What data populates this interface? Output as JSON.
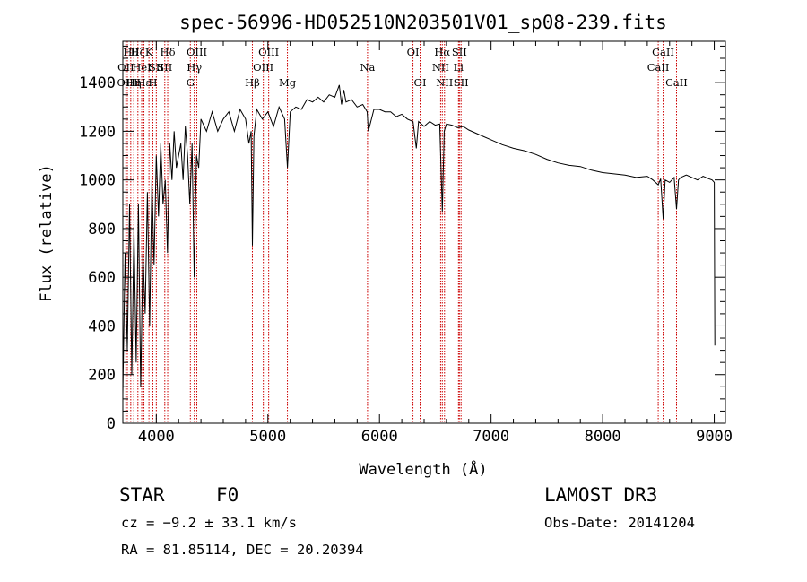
{
  "chart_data": {
    "type": "line",
    "title": "spec-56996-HD052510N203501V01_sp08-239.fits",
    "xlabel": "Wavelength (Å)",
    "ylabel": "Flux (relative)",
    "xlim": [
      3700,
      9100
    ],
    "ylim": [
      0,
      1570
    ],
    "xticks": [
      4000,
      5000,
      6000,
      7000,
      8000,
      9000
    ],
    "yticks": [
      0,
      200,
      400,
      600,
      800,
      1000,
      1200,
      1400
    ],
    "xtick_labels": [
      "4000",
      "5000",
      "6000",
      "7000",
      "8000",
      "9000"
    ],
    "ytick_labels": [
      "0",
      "200",
      "400",
      "600",
      "800",
      "1000",
      "1200",
      "1400"
    ],
    "series": [
      {
        "name": "spectrum",
        "color": "#000000",
        "x": [
          3700,
          3720,
          3740,
          3760,
          3780,
          3800,
          3820,
          3840,
          3860,
          3880,
          3900,
          3920,
          3940,
          3960,
          3980,
          4000,
          4020,
          4040,
          4060,
          4080,
          4100,
          4120,
          4140,
          4160,
          4180,
          4200,
          4220,
          4240,
          4260,
          4280,
          4300,
          4320,
          4340,
          4360,
          4380,
          4400,
          4450,
          4500,
          4550,
          4600,
          4650,
          4700,
          4750,
          4800,
          4830,
          4850,
          4861,
          4875,
          4900,
          4950,
          5000,
          5050,
          5100,
          5150,
          5175,
          5200,
          5250,
          5300,
          5350,
          5400,
          5450,
          5500,
          5550,
          5600,
          5640,
          5660,
          5680,
          5700,
          5750,
          5800,
          5850,
          5890,
          5900,
          5950,
          6000,
          6050,
          6100,
          6150,
          6200,
          6250,
          6300,
          6330,
          6350,
          6400,
          6450,
          6500,
          6540,
          6563,
          6580,
          6600,
          6650,
          6700,
          6750,
          6800,
          6900,
          7000,
          7100,
          7200,
          7300,
          7400,
          7500,
          7600,
          7700,
          7800,
          7900,
          8000,
          8100,
          8200,
          8300,
          8400,
          8450,
          8498,
          8520,
          8542,
          8560,
          8600,
          8640,
          8662,
          8680,
          8700,
          8750,
          8800,
          8850,
          8900,
          8950,
          8980,
          9000,
          9005
        ],
        "y": [
          120,
          700,
          300,
          900,
          200,
          800,
          250,
          900,
          150,
          700,
          450,
          950,
          400,
          1000,
          650,
          1100,
          850,
          1150,
          900,
          1000,
          700,
          1150,
          1000,
          1200,
          1050,
          1100,
          1150,
          1000,
          1220,
          1100,
          900,
          1150,
          600,
          1100,
          1050,
          1250,
          1200,
          1280,
          1200,
          1250,
          1280,
          1200,
          1290,
          1250,
          1150,
          1200,
          730,
          1180,
          1290,
          1250,
          1280,
          1220,
          1300,
          1250,
          1050,
          1280,
          1300,
          1290,
          1330,
          1320,
          1340,
          1320,
          1350,
          1340,
          1390,
          1310,
          1370,
          1320,
          1330,
          1300,
          1310,
          1280,
          1200,
          1290,
          1290,
          1280,
          1280,
          1260,
          1270,
          1250,
          1240,
          1130,
          1240,
          1220,
          1240,
          1225,
          1230,
          870,
          1200,
          1230,
          1225,
          1215,
          1220,
          1205,
          1185,
          1165,
          1145,
          1130,
          1120,
          1105,
          1085,
          1070,
          1060,
          1055,
          1040,
          1030,
          1025,
          1020,
          1010,
          1015,
          1000,
          980,
          1005,
          840,
          1000,
          990,
          1010,
          880,
          1000,
          1010,
          1020,
          1010,
          1000,
          1015,
          1005,
          1000,
          990,
          320
        ]
      }
    ],
    "line_markers": [
      {
        "label": "OII",
        "x": 3727,
        "row": 2
      },
      {
        "label": "OIII",
        "x": 3740,
        "row": 3
      },
      {
        "label": "Hθ",
        "x": 3771,
        "row": 1
      },
      {
        "label": "Hη",
        "x": 3798,
        "row": 3
      },
      {
        "label": "Hζ",
        "x": 3835,
        "row": 1
      },
      {
        "label": "HeI",
        "x": 3869,
        "row": 2
      },
      {
        "label": "Hε",
        "x": 3889,
        "row": 3
      },
      {
        "label": "K",
        "x": 3934,
        "row": 1
      },
      {
        "label": "H",
        "x": 3969,
        "row": 3
      },
      {
        "label": "SII",
        "x": 4000,
        "row": 2
      },
      {
        "label": "Hδ",
        "x": 4102,
        "row": 1
      },
      {
        "label": "SII",
        "x": 4076,
        "row": 2
      },
      {
        "label": "OIII",
        "x": 4363,
        "row": 1
      },
      {
        "label": "Hγ",
        "x": 4340,
        "row": 2
      },
      {
        "label": "G",
        "x": 4305,
        "row": 3
      },
      {
        "label": "Hβ",
        "x": 4861,
        "row": 3
      },
      {
        "label": "OIII",
        "x": 5007,
        "row": 1
      },
      {
        "label": "OIII",
        "x": 4959,
        "row": 2
      },
      {
        "label": "Mg",
        "x": 5175,
        "row": 3
      },
      {
        "label": "Na",
        "x": 5893,
        "row": 2
      },
      {
        "label": "OI",
        "x": 6300,
        "row": 1
      },
      {
        "label": "OI",
        "x": 6364,
        "row": 3
      },
      {
        "label": "Hα",
        "x": 6563,
        "row": 1
      },
      {
        "label": "NII",
        "x": 6548,
        "row": 2
      },
      {
        "label": "NII",
        "x": 6583,
        "row": 3
      },
      {
        "label": "SII",
        "x": 6716,
        "row": 1
      },
      {
        "label": "Li",
        "x": 6708,
        "row": 2
      },
      {
        "label": "SII",
        "x": 6731,
        "row": 3
      },
      {
        "label": "CaII",
        "x": 8542,
        "row": 1
      },
      {
        "label": "CaII",
        "x": 8498,
        "row": 2
      },
      {
        "label": "CaII",
        "x": 8662,
        "row": 3
      }
    ],
    "marker_color": "#cc0000"
  },
  "info": {
    "class": "STAR",
    "subclass": "F0",
    "survey": "LAMOST DR3",
    "cz": "cz = −9.2 ± 33.1 km/s",
    "obs_date": "Obs-Date: 20141204",
    "radec": "RA =  81.85114, DEC =  20.20394"
  }
}
